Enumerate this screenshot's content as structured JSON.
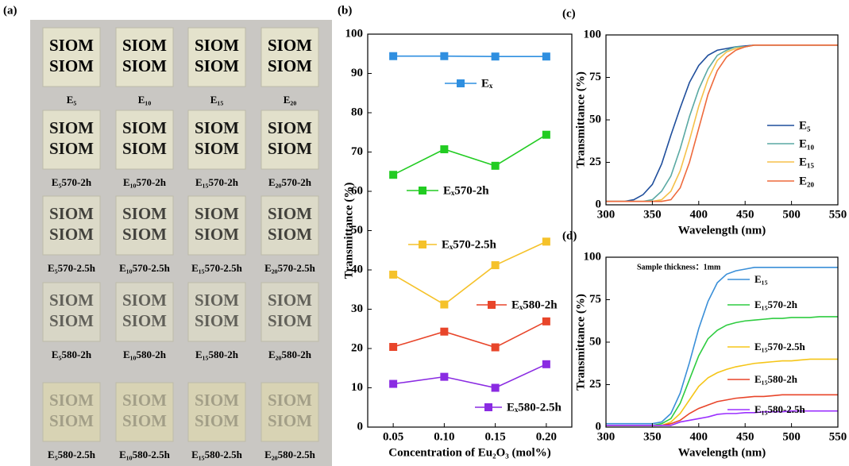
{
  "photo": {
    "label": "(a)",
    "text": "SIOM",
    "samples": [
      "E₅",
      "E₁₀",
      "E₁₅",
      "E₂₀",
      "E₅570-2h",
      "E₁₀570-2h",
      "E₁₅570-2h",
      "E₂₀570-2h",
      "E₅570-2.5h",
      "E₁₀570-2.5h",
      "E₁₅570-2.5h",
      "E₂₀570-2.5h",
      "E₅580-2h",
      "E₁₀580-2h",
      "E₁₅580-2h",
      "E₂₀580-2h",
      "E₅580-2.5h",
      "E₁₀580-2.5h",
      "E₁₅580-2.5h",
      "E₂₀580-2.5h"
    ]
  },
  "chart_data": [
    {
      "type": "line",
      "label": "(b)",
      "xlabel": "Concentration of Eu₂O₃ (mol%)",
      "ylabel": "Transmittance (%)",
      "x": [
        0.05,
        0.1,
        0.15,
        0.2
      ],
      "xlim": [
        0.025,
        0.225
      ],
      "xticks": [
        0.05,
        {
          "value": 0.1,
          "label": "0.10"
        },
        0.15,
        {
          "value": 0.2,
          "label": "0.20"
        }
      ],
      "ylim": [
        0,
        100
      ],
      "yticks": [
        0,
        10,
        20,
        30,
        40,
        50,
        60,
        70,
        80,
        90,
        100
      ],
      "markers": true,
      "series": [
        {
          "name": "Eₓ",
          "color": "#2f8fe0",
          "values": [
            94.4,
            94.4,
            94.3,
            94.3
          ]
        },
        {
          "name": "Eₓ570-2h",
          "color": "#22cc22",
          "values": [
            64.2,
            70.7,
            66.5,
            74.4
          ]
        },
        {
          "name": "Eₓ570-2.5h",
          "color": "#f5c22a",
          "values": [
            38.8,
            31.2,
            41.2,
            47.2
          ]
        },
        {
          "name": "Eₓ580-2h",
          "color": "#e8452a",
          "values": [
            20.4,
            24.3,
            20.3,
            26.9
          ]
        },
        {
          "name": "Eₓ580-2.5h",
          "color": "#8a2be2",
          "values": [
            11,
            12.8,
            10,
            16
          ]
        }
      ]
    },
    {
      "type": "line",
      "label": "(c)",
      "xlabel": "Wavelength (nm)",
      "ylabel": "Transmittance (%)",
      "x": [
        300,
        310,
        320,
        330,
        340,
        350,
        360,
        370,
        380,
        390,
        400,
        410,
        420,
        430,
        440,
        450,
        460,
        470,
        480,
        490,
        500,
        510,
        520,
        530,
        540,
        550
      ],
      "xlim": [
        300,
        550
      ],
      "xticks": [
        300,
        350,
        400,
        450,
        500,
        550
      ],
      "ylim": [
        0,
        100
      ],
      "yticks": [
        0,
        25,
        50,
        75,
        100
      ],
      "markers": false,
      "series": [
        {
          "name": "E₅",
          "color": "#1f4e9c",
          "values": [
            2,
            2,
            2,
            3,
            6,
            12,
            24,
            41,
            57,
            72,
            82,
            88,
            91,
            92,
            93,
            93.5,
            94,
            94,
            94,
            94,
            94,
            94,
            94,
            94,
            94,
            94
          ]
        },
        {
          "name": "E₁₀",
          "color": "#5aa9a3",
          "values": [
            2,
            2,
            2,
            2,
            2,
            3,
            8,
            17,
            33,
            52,
            68,
            80,
            88,
            91,
            93,
            93,
            94,
            94,
            94,
            94,
            94,
            94,
            94,
            94,
            94,
            94
          ]
        },
        {
          "name": "E₁₅",
          "color": "#f5c14a",
          "values": [
            2,
            2,
            2,
            2,
            2,
            2,
            3,
            8,
            20,
            38,
            58,
            74,
            85,
            90,
            92,
            93,
            94,
            94,
            94,
            94,
            94,
            94,
            94,
            94,
            94,
            94
          ]
        },
        {
          "name": "E₂₀",
          "color": "#ee6a3c",
          "values": [
            2,
            2,
            2,
            2,
            2,
            2,
            2,
            3,
            10,
            25,
            45,
            65,
            79,
            87,
            91,
            93,
            94,
            94,
            94,
            94,
            94,
            94,
            94,
            94,
            94,
            94
          ]
        }
      ]
    },
    {
      "type": "line",
      "label": "(d)",
      "xlabel": "Wavelength (nm)",
      "ylabel": "Transmittance (%)",
      "annotation": "Sample thickness：1mm",
      "x": [
        300,
        310,
        320,
        330,
        340,
        350,
        360,
        370,
        380,
        390,
        400,
        410,
        420,
        430,
        440,
        450,
        460,
        470,
        480,
        490,
        500,
        510,
        520,
        530,
        540,
        550
      ],
      "xlim": [
        300,
        550
      ],
      "xticks": [
        300,
        350,
        400,
        450,
        500,
        550
      ],
      "ylim": [
        0,
        100
      ],
      "yticks": [
        0,
        25,
        50,
        75,
        100
      ],
      "markers": false,
      "series": [
        {
          "name": "E₁₅",
          "color": "#3a8fd8",
          "values": [
            2,
            2,
            2,
            2,
            2,
            2,
            3,
            8,
            20,
            38,
            58,
            74,
            85,
            90,
            92,
            93,
            94,
            94,
            94,
            94,
            94,
            94,
            94,
            94,
            94,
            94
          ]
        },
        {
          "name": "E₁₅570-2h",
          "color": "#2ecc40",
          "values": [
            1,
            1,
            1,
            1,
            1,
            1,
            2,
            5,
            14,
            28,
            42,
            52,
            57,
            60,
            61.5,
            62.5,
            63,
            63.5,
            64,
            64,
            64.5,
            64.5,
            64.5,
            65,
            65,
            65
          ]
        },
        {
          "name": "E₁₅570-2.5h",
          "color": "#f5c518",
          "values": [
            1,
            1,
            1,
            1,
            1,
            1,
            1,
            3,
            8,
            16,
            24,
            29,
            32,
            34,
            35.5,
            36.5,
            37.5,
            38,
            38.5,
            39,
            39,
            39.5,
            40,
            40,
            40,
            40
          ]
        },
        {
          "name": "E₁₅580-2h",
          "color": "#e8452a",
          "values": [
            1,
            1,
            1,
            1,
            1,
            1,
            1,
            2,
            4,
            8,
            11,
            13,
            15,
            16,
            17,
            17.5,
            18,
            18,
            18.5,
            19,
            19,
            19,
            19,
            19,
            19,
            19
          ]
        },
        {
          "name": "E₁₅580-2.5h",
          "color": "#9b30ff",
          "values": [
            1,
            1,
            1,
            1,
            1,
            1,
            1,
            1,
            3,
            4,
            5,
            6,
            7.5,
            8,
            8,
            8.5,
            8.5,
            9,
            9,
            9,
            9.5,
            9.5,
            9.5,
            9.5,
            9.5,
            9.5
          ]
        }
      ]
    }
  ]
}
